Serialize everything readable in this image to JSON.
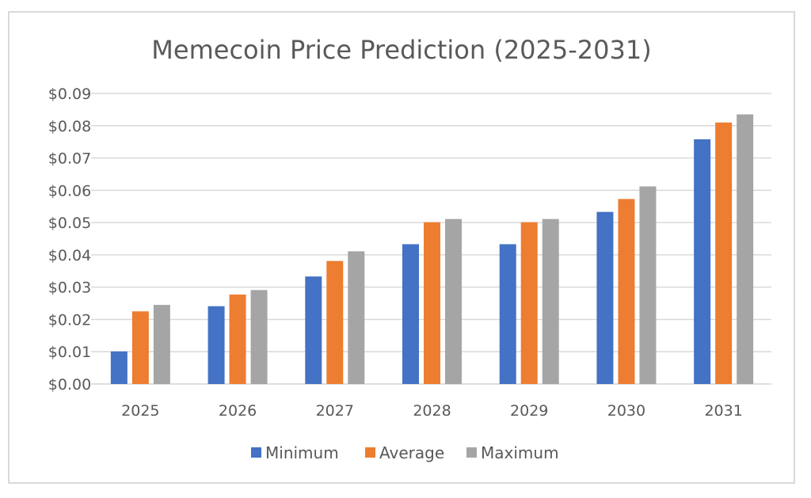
{
  "chart_data": {
    "type": "bar",
    "title": "Memecoin Price Prediction (2025-2031)",
    "xlabel": "",
    "ylabel": "",
    "categories": [
      "2025",
      "2026",
      "2027",
      "2028",
      "2029",
      "2030",
      "2031"
    ],
    "series": [
      {
        "name": "Minimum",
        "color": "#4472C4",
        "values": [
          0.0101,
          0.0241,
          0.0333,
          0.0433,
          0.0433,
          0.0533,
          0.0758
        ]
      },
      {
        "name": "Average",
        "color": "#ED7D31",
        "values": [
          0.0225,
          0.0277,
          0.0381,
          0.0501,
          0.0501,
          0.0573,
          0.081
        ]
      },
      {
        "name": "Maximum",
        "color": "#A5A5A5",
        "values": [
          0.0245,
          0.0291,
          0.0411,
          0.0511,
          0.0511,
          0.0612,
          0.0835
        ]
      }
    ],
    "ylim": [
      0,
      0.09
    ],
    "yticks": [
      0,
      0.01,
      0.02,
      0.03,
      0.04,
      0.05,
      0.06,
      0.07,
      0.08,
      0.09
    ],
    "ytick_labels": [
      "$0.00",
      "$0.01",
      "$0.02",
      "$0.03",
      "$0.04",
      "$0.05",
      "$0.06",
      "$0.07",
      "$0.08",
      "$0.09"
    ],
    "grid": true,
    "legend_position": "bottom"
  }
}
